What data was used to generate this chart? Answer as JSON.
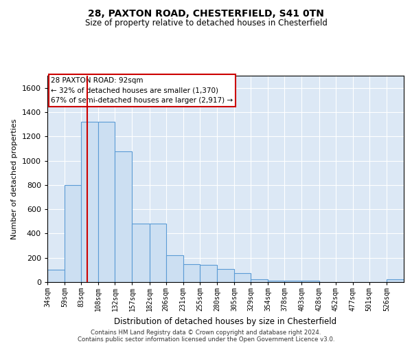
{
  "title1": "28, PAXTON ROAD, CHESTERFIELD, S41 0TN",
  "title2": "Size of property relative to detached houses in Chesterfield",
  "xlabel": "Distribution of detached houses by size in Chesterfield",
  "ylabel": "Number of detached properties",
  "footnote1": "Contains HM Land Registry data © Crown copyright and database right 2024.",
  "footnote2": "Contains public sector information licensed under the Open Government Licence v3.0.",
  "annotation_title": "28 PAXTON ROAD: 92sqm",
  "annotation_line1": "← 32% of detached houses are smaller (1,370)",
  "annotation_line2": "67% of semi-detached houses are larger (2,917) →",
  "property_size": 92,
  "bar_edge_color": "#5b9bd5",
  "bar_face_color": "#ccdff2",
  "vline_color": "#cc0000",
  "annotation_box_color": "#cc0000",
  "background_color": "#dce8f5",
  "bin_labels": [
    "34sqm",
    "59sqm",
    "83sqm",
    "108sqm",
    "132sqm",
    "157sqm",
    "182sqm",
    "206sqm",
    "231sqm",
    "255sqm",
    "280sqm",
    "305sqm",
    "329sqm",
    "354sqm",
    "378sqm",
    "403sqm",
    "428sqm",
    "452sqm",
    "477sqm",
    "501sqm",
    "526sqm"
  ],
  "bin_edges": [
    34,
    59,
    83,
    108,
    132,
    157,
    182,
    206,
    231,
    255,
    280,
    305,
    329,
    354,
    378,
    403,
    428,
    452,
    477,
    501,
    526,
    551
  ],
  "bar_heights": [
    100,
    800,
    1320,
    1320,
    1075,
    480,
    480,
    220,
    150,
    140,
    110,
    75,
    25,
    10,
    10,
    10,
    0,
    0,
    0,
    0,
    20
  ],
  "ylim": [
    0,
    1700
  ],
  "yticks": [
    0,
    200,
    400,
    600,
    800,
    1000,
    1200,
    1400,
    1600
  ]
}
